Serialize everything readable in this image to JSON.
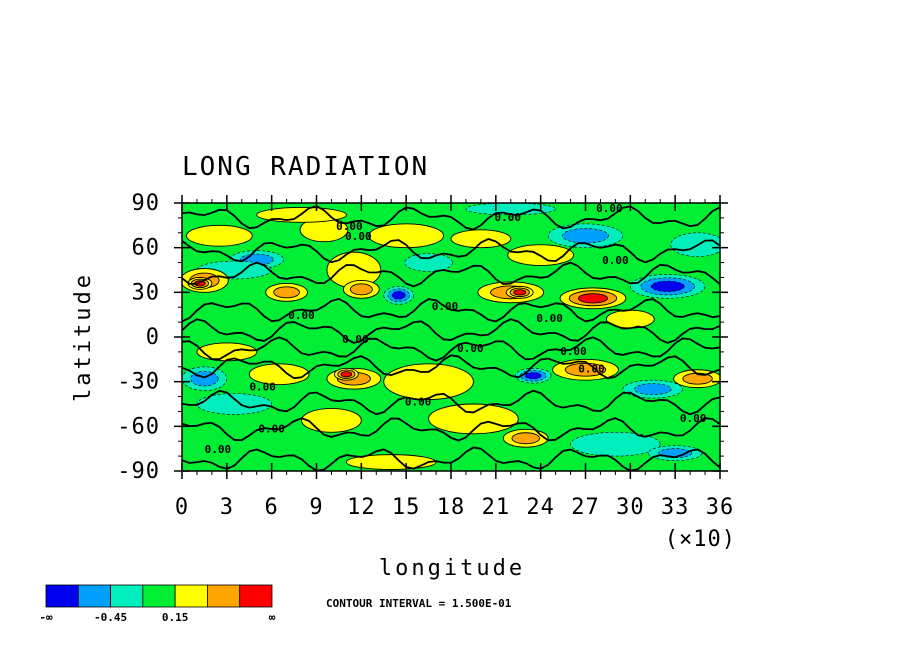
{
  "chart_data": {
    "type": "heatmap",
    "title": "LONG RADIATION",
    "xlabel": "longitude",
    "ylabel": "latitude",
    "x_scale_note": "(×10)",
    "xlim": [
      0,
      36
    ],
    "ylim": [
      -90,
      90
    ],
    "x_ticks": [
      "0",
      "3",
      "6",
      "9",
      "12",
      "15",
      "18",
      "21",
      "24",
      "27",
      "30",
      "33",
      "36"
    ],
    "y_ticks": [
      "90",
      "60",
      "30",
      "0",
      "-30",
      "-60",
      "-90"
    ],
    "contour_interval_text": "CONTOUR INTERVAL = 1.500E-01",
    "colorbar": {
      "colors": [
        "#0000ee",
        "#00a0ff",
        "#00eebb",
        "#00ee33",
        "#ffff00",
        "#ffa500",
        "#ff0000"
      ],
      "labels": [
        "-∞",
        "-0.45",
        "0.15",
        "∞"
      ]
    },
    "contour_labels": [
      {
        "text": "0.00",
        "lon": 11.2,
        "lat": 72
      },
      {
        "text": "0.00",
        "lon": 11.8,
        "lat": 65
      },
      {
        "text": "0.00",
        "lon": 21.8,
        "lat": 78
      },
      {
        "text": "0.00",
        "lon": 28.6,
        "lat": 84
      },
      {
        "text": "0.00",
        "lon": 29.0,
        "lat": 49
      },
      {
        "text": "0.00",
        "lon": 8.0,
        "lat": 12
      },
      {
        "text": "0.00",
        "lon": 11.6,
        "lat": -4
      },
      {
        "text": "0.00",
        "lon": 19.3,
        "lat": -10
      },
      {
        "text": "0.00",
        "lon": 26.2,
        "lat": -12
      },
      {
        "text": "0.00",
        "lon": 27.4,
        "lat": -24
      },
      {
        "text": "0.00",
        "lon": 6.0,
        "lat": -64
      },
      {
        "text": "0.00",
        "lon": 2.4,
        "lat": -78
      },
      {
        "text": "0.00",
        "lon": 34.2,
        "lat": -57
      },
      {
        "text": "0.00",
        "lon": 15.8,
        "lat": -46
      },
      {
        "text": "0.00",
        "lon": 5.4,
        "lat": -36
      },
      {
        "text": "0.00",
        "lon": 17.6,
        "lat": 18
      },
      {
        "text": "0.00",
        "lon": 24.6,
        "lat": 10
      }
    ],
    "field": {
      "background_level": 3,
      "features": [
        {
          "lon": 2.5,
          "lat": 68,
          "w": 2.2,
          "h": 7,
          "level": 4
        },
        {
          "lon": 5.0,
          "lat": 52,
          "w": 1.8,
          "h": 6,
          "level": 1
        },
        {
          "lon": 3.5,
          "lat": 45,
          "w": 2.5,
          "h": 6,
          "level": 2
        },
        {
          "lon": 1.5,
          "lat": 38,
          "w": 1.6,
          "h": 8,
          "level": 5
        },
        {
          "lon": 1.2,
          "lat": 36,
          "w": 0.8,
          "h": 4,
          "level": 6
        },
        {
          "lon": 7.0,
          "lat": 30,
          "w": 1.4,
          "h": 6,
          "level": 5
        },
        {
          "lon": 9.5,
          "lat": 72,
          "w": 1.6,
          "h": 8,
          "level": 4
        },
        {
          "lon": 11.5,
          "lat": 45,
          "w": 1.8,
          "h": 12,
          "level": 4
        },
        {
          "lon": 12.0,
          "lat": 32,
          "w": 1.2,
          "h": 6,
          "level": 5
        },
        {
          "lon": 15.0,
          "lat": 68,
          "w": 2.5,
          "h": 8,
          "level": 4
        },
        {
          "lon": 14.5,
          "lat": 28,
          "w": 1.0,
          "h": 6,
          "level": 0
        },
        {
          "lon": 16.5,
          "lat": 50,
          "w": 1.6,
          "h": 6,
          "level": 2
        },
        {
          "lon": 20.0,
          "lat": 66,
          "w": 2.0,
          "h": 6,
          "level": 4
        },
        {
          "lon": 22.0,
          "lat": 30,
          "w": 2.2,
          "h": 7,
          "level": 5
        },
        {
          "lon": 22.6,
          "lat": 30,
          "w": 0.9,
          "h": 4,
          "level": 6
        },
        {
          "lon": 24.0,
          "lat": 55,
          "w": 2.2,
          "h": 7,
          "level": 4
        },
        {
          "lon": 27.5,
          "lat": 26,
          "w": 2.2,
          "h": 7,
          "level": 6
        },
        {
          "lon": 27.0,
          "lat": 68,
          "w": 2.5,
          "h": 8,
          "level": 1
        },
        {
          "lon": 32.5,
          "lat": 34,
          "w": 2.5,
          "h": 8,
          "level": 0
        },
        {
          "lon": 34.5,
          "lat": 62,
          "w": 1.8,
          "h": 8,
          "level": 2
        },
        {
          "lon": 30.0,
          "lat": 12,
          "w": 1.6,
          "h": 6,
          "level": 4
        },
        {
          "lon": 3.0,
          "lat": -10,
          "w": 2.0,
          "h": 6,
          "level": 4
        },
        {
          "lon": 6.5,
          "lat": -25,
          "w": 2.0,
          "h": 7,
          "level": 4
        },
        {
          "lon": 1.5,
          "lat": -28,
          "w": 1.5,
          "h": 8,
          "level": 1
        },
        {
          "lon": 11.5,
          "lat": -28,
          "w": 1.8,
          "h": 7,
          "level": 5
        },
        {
          "lon": 11.0,
          "lat": -25,
          "w": 0.8,
          "h": 4,
          "level": 6
        },
        {
          "lon": 16.5,
          "lat": -30,
          "w": 3.0,
          "h": 12,
          "level": 4
        },
        {
          "lon": 23.5,
          "lat": -26,
          "w": 1.2,
          "h": 5,
          "level": 0
        },
        {
          "lon": 19.5,
          "lat": -55,
          "w": 3.0,
          "h": 10,
          "level": 4
        },
        {
          "lon": 23.0,
          "lat": -68,
          "w": 1.5,
          "h": 6,
          "level": 5
        },
        {
          "lon": 27.0,
          "lat": -22,
          "w": 2.2,
          "h": 7,
          "level": 5
        },
        {
          "lon": 31.5,
          "lat": -35,
          "w": 2.0,
          "h": 6,
          "level": 1
        },
        {
          "lon": 34.5,
          "lat": -28,
          "w": 1.6,
          "h": 6,
          "level": 5
        },
        {
          "lon": 10.0,
          "lat": -56,
          "w": 2.0,
          "h": 8,
          "level": 4
        },
        {
          "lon": 3.5,
          "lat": -45,
          "w": 2.5,
          "h": 7,
          "level": 2
        },
        {
          "lon": 29.0,
          "lat": -72,
          "w": 3.0,
          "h": 8,
          "level": 2
        },
        {
          "lon": 33.0,
          "lat": -78,
          "w": 1.8,
          "h": 5,
          "level": 1
        },
        {
          "lon": 14.0,
          "lat": -84,
          "w": 3.0,
          "h": 5,
          "level": 4
        },
        {
          "lon": 8.0,
          "lat": 82,
          "w": 3.0,
          "h": 5,
          "level": 4
        },
        {
          "lon": 22.0,
          "lat": 86,
          "w": 3.0,
          "h": 4,
          "level": 2
        }
      ]
    }
  }
}
